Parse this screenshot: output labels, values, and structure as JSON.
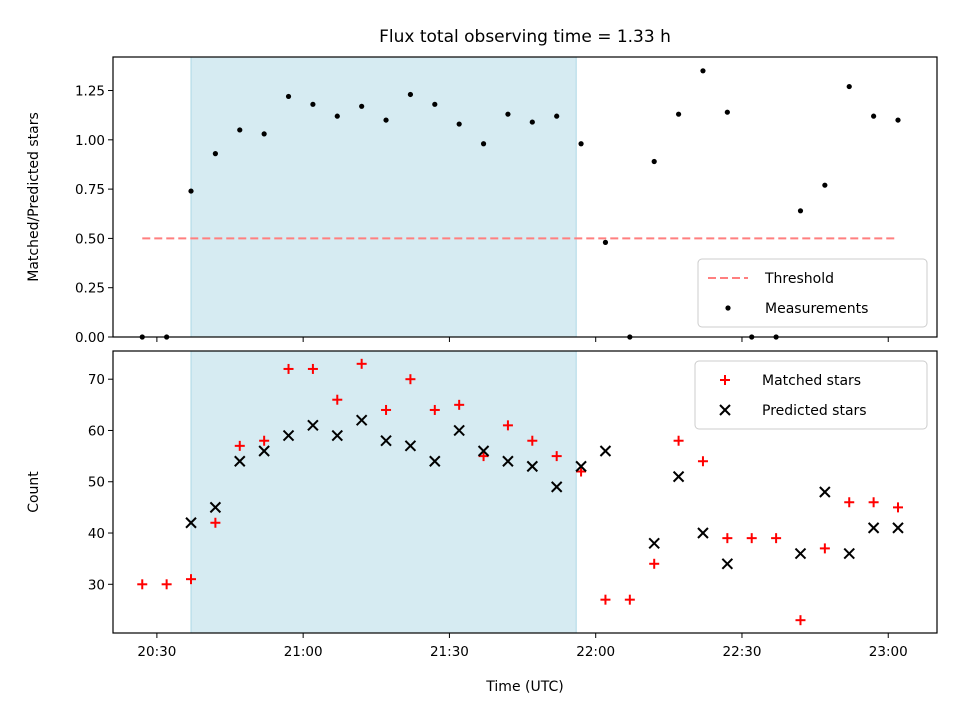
{
  "figure": {
    "title": "Flux total observing time = 1.33 h",
    "xlabel": "Time (UTC)"
  },
  "chart_data": [
    {
      "type": "scatter",
      "ylabel": "Matched/Predicted stars",
      "ylim": [
        0,
        1.42
      ],
      "yticks": [
        "0.00",
        "0.25",
        "0.50",
        "0.75",
        "1.00",
        "1.25"
      ],
      "ytick_values": [
        0,
        0.25,
        0.5,
        0.75,
        1.0,
        1.25
      ],
      "xticks": [
        "20:30",
        "21:00",
        "21:30",
        "22:00",
        "22:30",
        "23:00"
      ],
      "xtick_labels_visible": false,
      "x_range": [
        "20:21",
        "23:10"
      ],
      "shaded_interval": [
        "20:37",
        "21:56"
      ],
      "shaded_color": "#add8e6",
      "grid": false,
      "legend_position": "lower right",
      "threshold": {
        "name": "Threshold",
        "y": 0.5,
        "x": [
          "20:27",
          "23:02"
        ],
        "color": "#ff7f7f",
        "style": "dashed"
      },
      "series": [
        {
          "name": "Measurements",
          "marker": "dot",
          "color": "#000000",
          "x": [
            "20:27",
            "20:32",
            "20:37",
            "20:42",
            "20:47",
            "20:52",
            "20:57",
            "21:02",
            "21:07",
            "21:12",
            "21:17",
            "21:22",
            "21:27",
            "21:32",
            "21:37",
            "21:42",
            "21:47",
            "21:52",
            "21:57",
            "22:02",
            "22:07",
            "22:12",
            "22:17",
            "22:22",
            "22:27",
            "22:32",
            "22:37",
            "22:42",
            "22:47",
            "22:52",
            "22:57",
            "23:02"
          ],
          "y": [
            0.0,
            0.0,
            0.74,
            0.93,
            1.05,
            1.03,
            1.22,
            1.18,
            1.12,
            1.17,
            1.1,
            1.23,
            1.18,
            1.08,
            0.98,
            1.13,
            1.09,
            1.12,
            0.98,
            0.48,
            0.0,
            0.89,
            1.13,
            1.35,
            1.14,
            0.0,
            0.0,
            0.64,
            0.77,
            1.27,
            1.12,
            1.1
          ]
        }
      ]
    },
    {
      "type": "scatter",
      "ylabel": "Count",
      "ylim": [
        20.5,
        75.5
      ],
      "yticks": [
        "30",
        "40",
        "50",
        "60",
        "70"
      ],
      "ytick_values": [
        30,
        40,
        50,
        60,
        70
      ],
      "xticks": [
        "20:30",
        "21:00",
        "21:30",
        "22:00",
        "22:30",
        "23:00"
      ],
      "x_range": [
        "20:21",
        "23:10"
      ],
      "shaded_interval": [
        "20:37",
        "21:56"
      ],
      "shaded_color": "#add8e6",
      "grid": false,
      "legend_position": "upper right",
      "series": [
        {
          "name": "Matched stars",
          "marker": "plus",
          "color": "#ff0000",
          "x": [
            "20:27",
            "20:32",
            "20:37",
            "20:42",
            "20:47",
            "20:52",
            "20:57",
            "21:02",
            "21:07",
            "21:12",
            "21:17",
            "21:22",
            "21:27",
            "21:32",
            "21:37",
            "21:42",
            "21:47",
            "21:52",
            "21:57",
            "22:02",
            "22:07",
            "22:12",
            "22:17",
            "22:22",
            "22:27",
            "22:32",
            "22:37",
            "22:42",
            "22:47",
            "22:52",
            "22:57",
            "23:02"
          ],
          "y": [
            30,
            30,
            31,
            42,
            57,
            58,
            72,
            72,
            66,
            73,
            64,
            70,
            64,
            65,
            55,
            61,
            58,
            55,
            52,
            27,
            27,
            34,
            58,
            54,
            39,
            39,
            39,
            23,
            37,
            46,
            46,
            45
          ]
        },
        {
          "name": "Predicted stars",
          "marker": "x",
          "color": "#000000",
          "x": [
            "20:37",
            "20:42",
            "20:47",
            "20:52",
            "20:57",
            "21:02",
            "21:07",
            "21:12",
            "21:17",
            "21:22",
            "21:27",
            "21:32",
            "21:37",
            "21:42",
            "21:47",
            "21:52",
            "21:57",
            "22:02",
            "22:12",
            "22:17",
            "22:22",
            "22:27",
            "22:42",
            "22:47",
            "22:52",
            "22:57",
            "23:02"
          ],
          "y": [
            42,
            45,
            54,
            56,
            59,
            61,
            59,
            62,
            58,
            57,
            54,
            60,
            56,
            54,
            53,
            49,
            53,
            56,
            38,
            51,
            40,
            34,
            36,
            48,
            36,
            41,
            41
          ]
        }
      ]
    }
  ]
}
